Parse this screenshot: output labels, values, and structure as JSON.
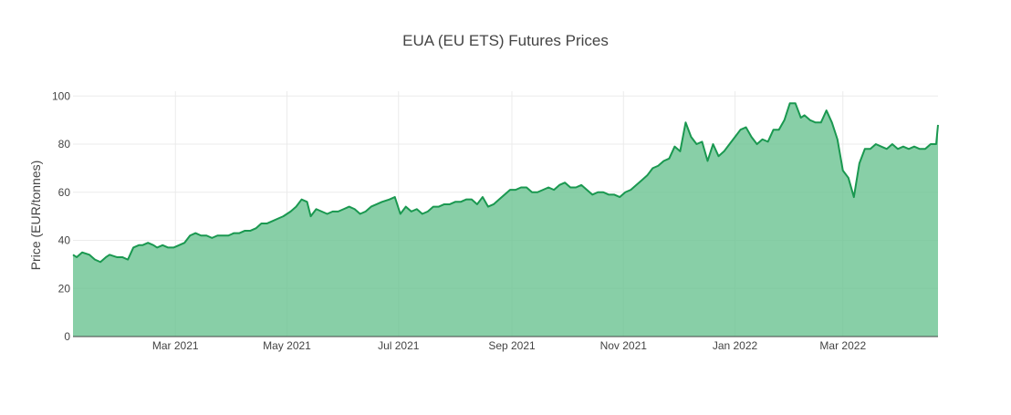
{
  "chart_data": {
    "type": "area",
    "title": "EUA (EU ETS) Futures Prices",
    "xlabel": "",
    "ylabel": "Price (EUR/tonnes)",
    "ylim": [
      0,
      102
    ],
    "xlim": [
      "2021-01-04",
      "2022-04-22"
    ],
    "grid": true,
    "colors": {
      "line": "#1a9850",
      "fill": "#66c28e"
    },
    "x_ticks": [
      {
        "date": "2021-03-01",
        "label": "Mar 2021"
      },
      {
        "date": "2021-05-01",
        "label": "May 2021"
      },
      {
        "date": "2021-07-01",
        "label": "Jul 2021"
      },
      {
        "date": "2021-09-01",
        "label": "Sep 2021"
      },
      {
        "date": "2021-11-01",
        "label": "Nov 2021"
      },
      {
        "date": "2022-01-01",
        "label": "Jan 2022"
      },
      {
        "date": "2022-03-01",
        "label": "Mar 2022"
      }
    ],
    "y_ticks": [
      0,
      20,
      40,
      60,
      80,
      100
    ],
    "series": [
      {
        "x": [
          "2021-01-04",
          "2021-01-06",
          "2021-01-09",
          "2021-01-13",
          "2021-01-16",
          "2021-01-19",
          "2021-01-22",
          "2021-01-24",
          "2021-01-28",
          "2021-01-31",
          "2021-02-03",
          "2021-02-06",
          "2021-02-09",
          "2021-02-11",
          "2021-02-14",
          "2021-02-17",
          "2021-02-19",
          "2021-02-22",
          "2021-02-25",
          "2021-02-28",
          "2021-03-03",
          "2021-03-06",
          "2021-03-09",
          "2021-03-12",
          "2021-03-15",
          "2021-03-18",
          "2021-03-21",
          "2021-03-24",
          "2021-03-27",
          "2021-03-30",
          "2021-04-02",
          "2021-04-05",
          "2021-04-08",
          "2021-04-11",
          "2021-04-14",
          "2021-04-17",
          "2021-04-20",
          "2021-04-23",
          "2021-04-26",
          "2021-04-29",
          "2021-05-03",
          "2021-05-06",
          "2021-05-09",
          "2021-05-12",
          "2021-05-14",
          "2021-05-17",
          "2021-05-20",
          "2021-05-23",
          "2021-05-26",
          "2021-05-29",
          "2021-06-01",
          "2021-06-04",
          "2021-06-07",
          "2021-06-10",
          "2021-06-13",
          "2021-06-16",
          "2021-06-19",
          "2021-06-22",
          "2021-06-26",
          "2021-06-29",
          "2021-07-02",
          "2021-07-05",
          "2021-07-08",
          "2021-07-11",
          "2021-07-14",
          "2021-07-17",
          "2021-07-20",
          "2021-07-23",
          "2021-07-26",
          "2021-07-29",
          "2021-08-01",
          "2021-08-04",
          "2021-08-07",
          "2021-08-10",
          "2021-08-13",
          "2021-08-16",
          "2021-08-19",
          "2021-08-22",
          "2021-08-25",
          "2021-08-28",
          "2021-08-31",
          "2021-09-03",
          "2021-09-06",
          "2021-09-09",
          "2021-09-12",
          "2021-09-15",
          "2021-09-18",
          "2021-09-21",
          "2021-09-24",
          "2021-09-27",
          "2021-09-30",
          "2021-10-03",
          "2021-10-06",
          "2021-10-09",
          "2021-10-12",
          "2021-10-15",
          "2021-10-18",
          "2021-10-21",
          "2021-10-24",
          "2021-10-27",
          "2021-10-30",
          "2021-11-02",
          "2021-11-05",
          "2021-11-08",
          "2021-11-11",
          "2021-11-14",
          "2021-11-17",
          "2021-11-20",
          "2021-11-23",
          "2021-11-26",
          "2021-11-29",
          "2021-12-02",
          "2021-12-05",
          "2021-12-08",
          "2021-12-11",
          "2021-12-14",
          "2021-12-17",
          "2021-12-20",
          "2021-12-23",
          "2021-12-26",
          "2021-12-29",
          "2022-01-01",
          "2022-01-04",
          "2022-01-07",
          "2022-01-10",
          "2022-01-13",
          "2022-01-16",
          "2022-01-19",
          "2022-01-22",
          "2022-01-25",
          "2022-01-28",
          "2022-01-31",
          "2022-02-03",
          "2022-02-06",
          "2022-02-08",
          "2022-02-11",
          "2022-02-14",
          "2022-02-17",
          "2022-02-20",
          "2022-02-23",
          "2022-02-26",
          "2022-03-01",
          "2022-03-04",
          "2022-03-07",
          "2022-03-10",
          "2022-03-13",
          "2022-03-16",
          "2022-03-19",
          "2022-03-22",
          "2022-03-25",
          "2022-03-28",
          "2022-03-31",
          "2022-04-03",
          "2022-04-06",
          "2022-04-09",
          "2022-04-12",
          "2022-04-15",
          "2022-04-18",
          "2022-04-21",
          "2022-04-22"
        ],
        "y": [
          34,
          33,
          35,
          34,
          32,
          31,
          33,
          34,
          33,
          33,
          32,
          37,
          38,
          38,
          39,
          38,
          37,
          38,
          37,
          37,
          38,
          39,
          42,
          43,
          42,
          42,
          41,
          42,
          42,
          42,
          43,
          43,
          44,
          44,
          45,
          47,
          47,
          48,
          49,
          50,
          52,
          54,
          57,
          56,
          50,
          53,
          52,
          51,
          52,
          52,
          53,
          54,
          53,
          51,
          52,
          54,
          55,
          56,
          57,
          58,
          51,
          54,
          52,
          53,
          51,
          52,
          54,
          54,
          55,
          55,
          56,
          56,
          57,
          57,
          55,
          58,
          54,
          55,
          57,
          59,
          61,
          61,
          62,
          62,
          60,
          60,
          61,
          62,
          61,
          63,
          64,
          62,
          62,
          63,
          61,
          59,
          60,
          60,
          59,
          59,
          58,
          60,
          61,
          63,
          65,
          67,
          70,
          71,
          73,
          74,
          79,
          77,
          89,
          83,
          80,
          81,
          73,
          80,
          75,
          77,
          80,
          83,
          86,
          87,
          83,
          80,
          82,
          81,
          86,
          86,
          90,
          97,
          97,
          91,
          92,
          90,
          89,
          89,
          94,
          89,
          82,
          69,
          66,
          58,
          72,
          78,
          78,
          80,
          79,
          78,
          80,
          78,
          79,
          78,
          79,
          78,
          78,
          80,
          80,
          88
        ]
      }
    ]
  }
}
